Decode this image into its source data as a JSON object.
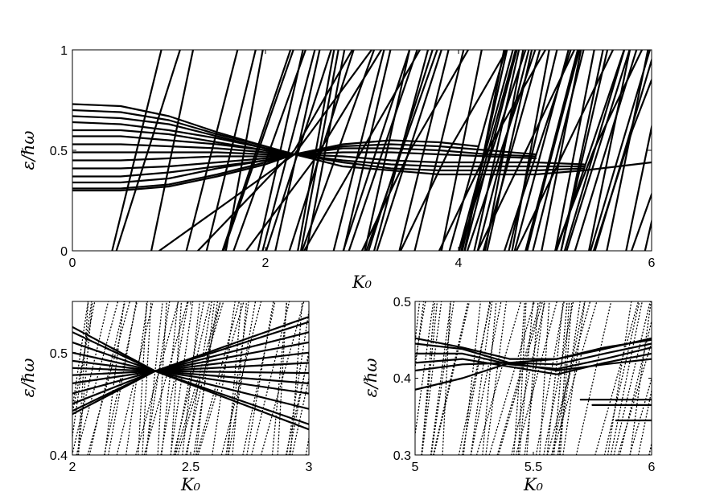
{
  "chart_data": [
    {
      "type": "line",
      "xlabel": "K₀",
      "ylabel": "ε/ℏω",
      "xlim": [
        0,
        6
      ],
      "ylim": [
        0,
        1
      ],
      "xticks": [
        "0",
        "2",
        "4",
        "6"
      ],
      "yticks": [
        "0",
        "0.5",
        "1"
      ],
      "series": [
        {
          "x": [
            0,
            0.5,
            1.0,
            1.5,
            2.0,
            2.3
          ],
          "y": [
            0.73,
            0.72,
            0.67,
            0.59,
            0.52,
            0.48
          ]
        },
        {
          "x": [
            0,
            0.5,
            1.0,
            1.5,
            2.0,
            2.3
          ],
          "y": [
            0.7,
            0.69,
            0.65,
            0.58,
            0.52,
            0.48
          ]
        },
        {
          "x": [
            0,
            0.5,
            1.0,
            1.5,
            2.0,
            2.3
          ],
          "y": [
            0.67,
            0.66,
            0.63,
            0.57,
            0.51,
            0.48
          ]
        },
        {
          "x": [
            0,
            0.5,
            1.0,
            1.5,
            2.0,
            2.3
          ],
          "y": [
            0.64,
            0.63,
            0.6,
            0.56,
            0.51,
            0.48
          ]
        },
        {
          "x": [
            0,
            0.5,
            1.0,
            1.5,
            2.0,
            2.3
          ],
          "y": [
            0.6,
            0.6,
            0.58,
            0.54,
            0.5,
            0.48
          ]
        },
        {
          "x": [
            0,
            0.5,
            1.0,
            1.5,
            2.0,
            2.3
          ],
          "y": [
            0.57,
            0.57,
            0.55,
            0.53,
            0.5,
            0.48
          ]
        },
        {
          "x": [
            0,
            0.5,
            1.0,
            1.5,
            2.0,
            2.3
          ],
          "y": [
            0.53,
            0.53,
            0.52,
            0.51,
            0.49,
            0.48
          ]
        },
        {
          "x": [
            0,
            0.5,
            1.0,
            1.5,
            2.0,
            2.3
          ],
          "y": [
            0.49,
            0.49,
            0.49,
            0.49,
            0.48,
            0.48
          ]
        },
        {
          "x": [
            0,
            0.5,
            1.0,
            1.5,
            2.0,
            2.3
          ],
          "y": [
            0.45,
            0.45,
            0.46,
            0.47,
            0.47,
            0.48
          ]
        },
        {
          "x": [
            0,
            0.5,
            1.0,
            1.5,
            2.0,
            2.3
          ],
          "y": [
            0.41,
            0.41,
            0.42,
            0.44,
            0.46,
            0.48
          ]
        },
        {
          "x": [
            0,
            0.5,
            1.0,
            1.5,
            2.0,
            2.3
          ],
          "y": [
            0.37,
            0.37,
            0.39,
            0.42,
            0.45,
            0.48
          ]
        },
        {
          "x": [
            0,
            0.5,
            1.0,
            1.5,
            2.0,
            2.3
          ],
          "y": [
            0.34,
            0.34,
            0.36,
            0.41,
            0.45,
            0.48
          ]
        },
        {
          "x": [
            0,
            0.5,
            1.0,
            1.5,
            2.0,
            2.3
          ],
          "y": [
            0.31,
            0.31,
            0.33,
            0.38,
            0.44,
            0.48
          ]
        },
        {
          "x": [
            0,
            0.5,
            1.0,
            1.5,
            2.0,
            2.3
          ],
          "y": [
            0.3,
            0.3,
            0.32,
            0.37,
            0.43,
            0.48
          ]
        },
        {
          "x": [
            2.3,
            2.8,
            3.3,
            3.8,
            4.2
          ],
          "y": [
            0.48,
            0.53,
            0.55,
            0.54,
            0.52
          ]
        },
        {
          "x": [
            2.3,
            2.8,
            3.3,
            3.8,
            4.3,
            4.8
          ],
          "y": [
            0.48,
            0.52,
            0.53,
            0.52,
            0.5,
            0.48
          ]
        },
        {
          "x": [
            2.3,
            2.8,
            3.3,
            3.8,
            4.3,
            4.8
          ],
          "y": [
            0.48,
            0.51,
            0.51,
            0.5,
            0.48,
            0.47
          ]
        },
        {
          "x": [
            2.3,
            2.8,
            3.3,
            3.8,
            4.3,
            4.8
          ],
          "y": [
            0.48,
            0.49,
            0.49,
            0.48,
            0.47,
            0.46
          ]
        },
        {
          "x": [
            2.3,
            2.8,
            3.3,
            3.8,
            4.3,
            4.8,
            5.3
          ],
          "y": [
            0.48,
            0.47,
            0.45,
            0.44,
            0.44,
            0.44,
            0.43
          ]
        },
        {
          "x": [
            2.3,
            2.8,
            3.3,
            3.8,
            4.3,
            4.8,
            5.3
          ],
          "y": [
            0.48,
            0.45,
            0.43,
            0.42,
            0.42,
            0.42,
            0.42
          ]
        },
        {
          "x": [
            2.3,
            2.8,
            3.3,
            3.8,
            4.3,
            4.8,
            5.3
          ],
          "y": [
            0.48,
            0.44,
            0.41,
            0.4,
            0.4,
            0.4,
            0.41
          ]
        },
        {
          "x": [
            2.3,
            2.8,
            3.3,
            3.8,
            4.3,
            4.8,
            5.3,
            6.0
          ],
          "y": [
            0.48,
            0.42,
            0.4,
            0.38,
            0.38,
            0.38,
            0.4,
            0.44
          ]
        },
        {
          "x": [
            0.9,
            2.3,
            3.1
          ],
          "y": [
            0,
            0.48,
            1
          ]
        },
        {
          "x": [
            1.3,
            2.3,
            2.9
          ],
          "y": [
            0,
            0.5,
            1
          ]
        },
        {
          "x": [
            1.8,
            2.5,
            3.2
          ],
          "y": [
            0,
            0.45,
            1
          ]
        },
        {
          "x": [
            2.4,
            3.0,
            3.6
          ],
          "y": [
            0,
            0.5,
            1
          ]
        },
        {
          "x": [
            3.0,
            3.5,
            4.1
          ],
          "y": [
            0,
            0.5,
            1
          ]
        },
        {
          "x": [
            3.4,
            3.9,
            4.5
          ],
          "y": [
            0,
            0.5,
            1
          ]
        },
        {
          "x": [
            3.8,
            4.3,
            4.9
          ],
          "y": [
            0,
            0.5,
            1
          ]
        },
        {
          "x": [
            4.2,
            4.7,
            5.2
          ],
          "y": [
            0,
            0.5,
            1
          ]
        },
        {
          "x": [
            4.6,
            5.1,
            5.6
          ],
          "y": [
            0,
            0.5,
            1
          ]
        },
        {
          "x": [
            5.0,
            5.4,
            5.9
          ],
          "y": [
            0,
            0.5,
            1
          ]
        },
        {
          "x": [
            5.4,
            5.8,
            6.0
          ],
          "y": [
            0,
            0.6,
            0.85
          ]
        }
      ]
    },
    {
      "type": "line",
      "xlabel": "K₀",
      "ylabel": "ε/ℏω",
      "xlim": [
        2,
        3
      ],
      "ylim": [
        0.4,
        0.55
      ],
      "xticks": [
        "2",
        "2.5",
        "3"
      ],
      "yticks": [
        "0.4",
        "0.5"
      ],
      "series": [
        {
          "x": [
            2,
            2.35,
            3
          ],
          "y": [
            0.525,
            0.482,
            0.425
          ]
        },
        {
          "x": [
            2,
            2.35,
            3
          ],
          "y": [
            0.52,
            0.482,
            0.43
          ]
        },
        {
          "x": [
            2,
            2.35,
            3
          ],
          "y": [
            0.51,
            0.482,
            0.445
          ]
        },
        {
          "x": [
            2,
            2.35,
            3
          ],
          "y": [
            0.5,
            0.482,
            0.46
          ]
        },
        {
          "x": [
            2,
            2.35,
            3
          ],
          "y": [
            0.492,
            0.482,
            0.47
          ]
        },
        {
          "x": [
            2,
            2.35,
            3
          ],
          "y": [
            0.485,
            0.482,
            0.48
          ]
        },
        {
          "x": [
            2,
            2.35,
            3
          ],
          "y": [
            0.478,
            0.482,
            0.49
          ]
        },
        {
          "x": [
            2,
            2.35,
            3
          ],
          "y": [
            0.47,
            0.482,
            0.5
          ]
        },
        {
          "x": [
            2,
            2.35,
            3
          ],
          "y": [
            0.46,
            0.482,
            0.51
          ]
        },
        {
          "x": [
            2,
            2.35,
            3
          ],
          "y": [
            0.45,
            0.482,
            0.52
          ]
        },
        {
          "x": [
            2,
            2.35,
            3
          ],
          "y": [
            0.443,
            0.482,
            0.53
          ]
        },
        {
          "x": [
            2,
            2.35,
            3
          ],
          "y": [
            0.44,
            0.482,
            0.535
          ]
        }
      ]
    },
    {
      "type": "line",
      "xlabel": "K₀",
      "ylabel": "ε/ℏω",
      "xlim": [
        5,
        6
      ],
      "ylim": [
        0.3,
        0.5
      ],
      "xticks": [
        "5",
        "5.5",
        "6"
      ],
      "yticks": [
        "0.3",
        "0.4",
        "0.5"
      ],
      "series": [
        {
          "x": [
            5,
            5.2,
            5.4,
            5.6,
            5.8,
            6
          ],
          "y": [
            0.452,
            0.44,
            0.425,
            0.425,
            0.438,
            0.452
          ]
        },
        {
          "x": [
            5,
            5.2,
            5.4,
            5.6,
            5.8,
            6
          ],
          "y": [
            0.445,
            0.438,
            0.42,
            0.418,
            0.432,
            0.445
          ]
        },
        {
          "x": [
            5,
            5.2,
            5.4,
            5.6,
            5.8,
            6
          ],
          "y": [
            0.432,
            0.432,
            0.418,
            0.412,
            0.425,
            0.44
          ]
        },
        {
          "x": [
            5,
            5.2,
            5.4,
            5.6,
            5.8,
            6
          ],
          "y": [
            0.42,
            0.425,
            0.415,
            0.405,
            0.42,
            0.432
          ]
        },
        {
          "x": [
            5,
            5.2,
            5.4,
            5.6,
            5.8,
            6
          ],
          "y": [
            0.41,
            0.418,
            0.42,
            0.41,
            0.418,
            0.425
          ]
        },
        {
          "x": [
            5,
            5.2,
            5.4,
            5.6,
            5.8,
            6
          ],
          "y": [
            0.385,
            0.4,
            0.42,
            0.425,
            0.44,
            0.45
          ]
        },
        {
          "x": [
            5.7,
            5.8,
            6
          ],
          "y": [
            0.372,
            0.372,
            0.372
          ]
        },
        {
          "x": [
            5.75,
            5.85,
            6
          ],
          "y": [
            0.365,
            0.365,
            0.365
          ]
        },
        {
          "x": [
            5.85,
            5.9,
            6
          ],
          "y": [
            0.345,
            0.345,
            0.345
          ]
        }
      ]
    }
  ]
}
